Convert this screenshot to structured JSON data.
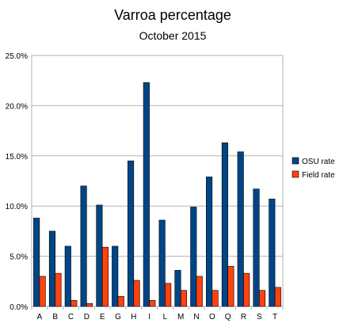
{
  "chart_data": {
    "type": "bar",
    "title": "Varroa percentage",
    "subtitle": "October 2015",
    "xlabel": "",
    "ylabel": "",
    "categories": [
      "A",
      "B",
      "C",
      "D",
      "E",
      "G",
      "H",
      "I",
      "L",
      "M",
      "N",
      "O",
      "Q",
      "R",
      "S",
      "T"
    ],
    "ylim": [
      0,
      25
    ],
    "yticks": [
      0,
      5,
      10,
      15,
      20,
      25
    ],
    "ytick_labels": [
      "0.0%",
      "5.0%",
      "10.0%",
      "15.0%",
      "20.0%",
      "25.0%"
    ],
    "grid": true,
    "legend_position": "right",
    "series": [
      {
        "name": "OSU rate",
        "color": "#004586",
        "values": [
          8.8,
          7.5,
          6.0,
          12.0,
          10.1,
          6.0,
          14.5,
          22.3,
          8.6,
          3.6,
          9.9,
          12.9,
          16.3,
          15.4,
          11.7,
          10.7
        ]
      },
      {
        "name": "Field rate",
        "color": "#ff420e",
        "values": [
          3.0,
          3.3,
          0.6,
          0.3,
          5.9,
          1.0,
          2.6,
          0.6,
          2.3,
          1.6,
          3.0,
          1.6,
          4.0,
          3.3,
          1.6,
          1.9
        ]
      }
    ]
  }
}
